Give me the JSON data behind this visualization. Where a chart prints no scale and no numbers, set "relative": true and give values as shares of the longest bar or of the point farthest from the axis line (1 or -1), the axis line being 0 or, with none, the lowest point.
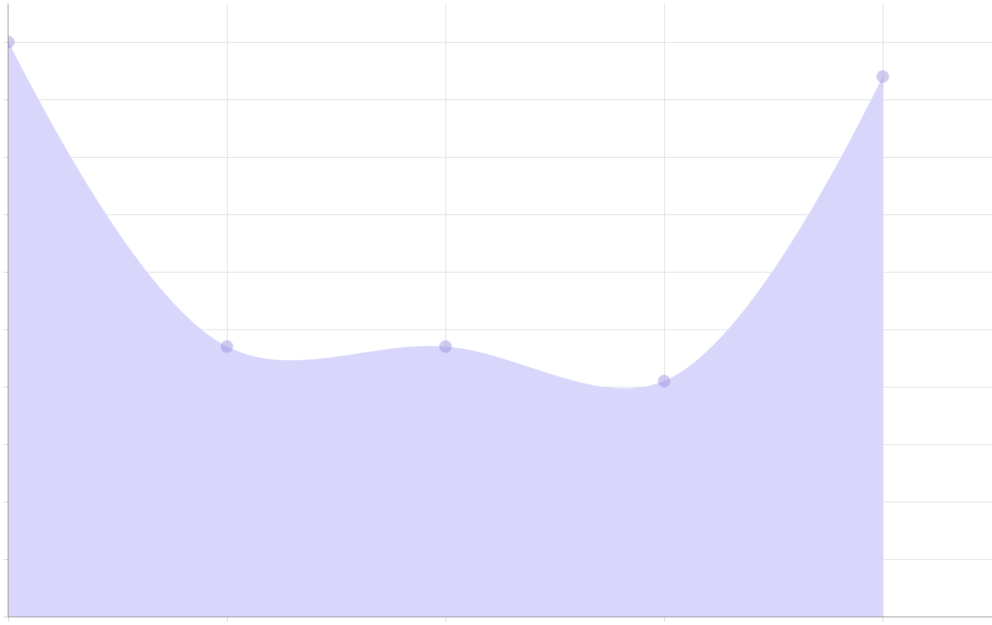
{
  "chart_data": {
    "type": "area",
    "relative": true,
    "categories": [
      null,
      null,
      null,
      null,
      null
    ],
    "series": [
      {
        "color": "#d8d6fb",
        "values": [
          1,
          0.47,
          0.47,
          0.41,
          0.94
        ]
      }
    ],
    "grid": true,
    "marker": "circle"
  }
}
